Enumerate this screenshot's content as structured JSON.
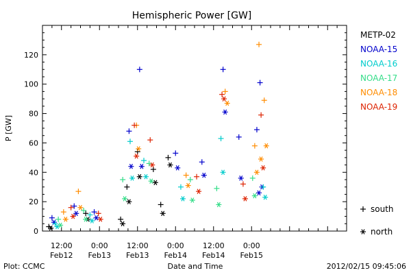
{
  "chart_data": {
    "type": "scatter",
    "title": "Hemispheric Power [GW]",
    "ylabel": "P [GW]",
    "xlabel": "Date and Time",
    "ylim": [
      0,
      140
    ],
    "yticks": [
      0,
      20,
      40,
      60,
      80,
      100,
      120
    ],
    "xlim": [
      "2012-02-12 06:00",
      "2012-02-16 06:00"
    ],
    "xticks": [
      {
        "time": "2012-02-12 12:00",
        "line1": "12:00",
        "line2": "Feb12"
      },
      {
        "time": "2012-02-13 00:00",
        "line1": "0:00",
        "line2": "Feb13"
      },
      {
        "time": "2012-02-13 12:00",
        "line1": "12:00",
        "line2": "Feb13"
      },
      {
        "time": "2012-02-14 00:00",
        "line1": "0:00",
        "line2": "Feb14"
      },
      {
        "time": "2012-02-14 12:00",
        "line1": "12:00",
        "line2": "Feb14"
      },
      {
        "time": "2012-02-15 00:00",
        "line1": "0:00",
        "line2": "Feb15"
      }
    ],
    "marker_legend": [
      {
        "symbol": "+",
        "label": "south"
      },
      {
        "symbol": "*",
        "label": "north"
      }
    ],
    "series": [
      {
        "name": "METP-02",
        "color": "#000000",
        "points": [
          {
            "x": "2012-02-12 08:00",
            "south": 3,
            "north": 2
          },
          {
            "x": "2012-02-12 19:40",
            "south": 12,
            "north": 8
          },
          {
            "x": "2012-02-13 06:40",
            "south": 8,
            "north": 5
          },
          {
            "x": "2012-02-13 08:40",
            "south": 30,
            "north": 20
          },
          {
            "x": "2012-02-13 12:00",
            "south": 54,
            "north": 37
          },
          {
            "x": "2012-02-13 17:00",
            "south": 42,
            "north": 33
          },
          {
            "x": "2012-02-13 19:20",
            "south": 18,
            "north": 12
          },
          {
            "x": "2012-02-13 21:40",
            "south": 50,
            "north": 45
          }
        ]
      },
      {
        "name": "NOAA-15",
        "color": "#0000cc",
        "points": [
          {
            "x": "2012-02-12 09:00",
            "south": 9,
            "north": 6
          },
          {
            "x": "2012-02-12 16:00",
            "south": 17,
            "north": 12
          },
          {
            "x": "2012-02-12 22:20",
            "south": 13,
            "north": 9
          },
          {
            "x": "2012-02-13 09:20",
            "south": 68,
            "north": 44
          },
          {
            "x": "2012-02-13 12:40",
            "south": 110,
            "north": 44
          },
          {
            "x": "2012-02-14 00:00",
            "south": 53,
            "north": 43
          },
          {
            "x": "2012-02-14 08:20",
            "south": 47,
            "north": 38
          },
          {
            "x": "2012-02-14 15:00",
            "south": 110,
            "north": 81
          },
          {
            "x": "2012-02-14 20:00",
            "south": 64,
            "north": 36
          },
          {
            "x": "2012-02-15 01:40",
            "south": 69,
            "north": 26
          },
          {
            "x": "2012-02-15 02:40",
            "south": 101,
            "north": 30
          }
        ]
      },
      {
        "name": "NOAA-16",
        "color": "#00cccc",
        "points": [
          {
            "x": "2012-02-12 10:00",
            "south": 5,
            "north": 3
          },
          {
            "x": "2012-02-12 21:00",
            "south": 11,
            "north": 7
          },
          {
            "x": "2012-02-13 09:40",
            "south": 61,
            "north": 36
          },
          {
            "x": "2012-02-13 14:00",
            "south": 48,
            "north": 37
          },
          {
            "x": "2012-02-14 01:40",
            "south": 30,
            "north": 22
          },
          {
            "x": "2012-02-14 14:20",
            "south": 63,
            "north": 40
          },
          {
            "x": "2012-02-15 03:40",
            "south": 30,
            "north": 23
          }
        ]
      },
      {
        "name": "NOAA-17",
        "color": "#33dd88",
        "points": [
          {
            "x": "2012-02-12 11:00",
            "south": 8,
            "north": 4
          },
          {
            "x": "2012-02-12 19:00",
            "south": 14,
            "north": 8
          },
          {
            "x": "2012-02-13 07:20",
            "south": 35,
            "north": 22
          },
          {
            "x": "2012-02-13 15:40",
            "south": 46,
            "north": 34
          },
          {
            "x": "2012-02-14 04:40",
            "south": 35,
            "north": 21
          },
          {
            "x": "2012-02-14 13:00",
            "south": 29,
            "north": 18
          },
          {
            "x": "2012-02-15 00:20",
            "south": 36,
            "north": 24
          }
        ]
      },
      {
        "name": "NOAA-18",
        "color": "#ff8c00",
        "points": [
          {
            "x": "2012-02-12 12:40",
            "south": 13,
            "north": 8
          },
          {
            "x": "2012-02-12 17:20",
            "south": 27,
            "north": 16
          },
          {
            "x": "2012-02-13 11:40",
            "south": 72,
            "north": 56
          },
          {
            "x": "2012-02-14 03:20",
            "south": 38,
            "north": 31
          },
          {
            "x": "2012-02-14 15:40",
            "south": 95,
            "north": 87
          },
          {
            "x": "2012-02-15 01:00",
            "south": 58,
            "north": 40
          },
          {
            "x": "2012-02-15 04:00",
            "south": 89,
            "north": 58
          },
          {
            "x": "2012-02-15 02:20",
            "south": 127,
            "north": 49
          }
        ]
      },
      {
        "name": "NOAA-19",
        "color": "#dd2200",
        "points": [
          {
            "x": "2012-02-12 15:00",
            "south": 16,
            "north": 10
          },
          {
            "x": "2012-02-12 23:40",
            "south": 12,
            "north": 8
          },
          {
            "x": "2012-02-13 11:00",
            "south": 72,
            "north": 51
          },
          {
            "x": "2012-02-13 16:00",
            "south": 62,
            "north": 45
          },
          {
            "x": "2012-02-14 06:40",
            "south": 37,
            "north": 27
          },
          {
            "x": "2012-02-14 14:40",
            "south": 93,
            "north": 90
          },
          {
            "x": "2012-02-15 03:00",
            "south": 79,
            "north": 43
          },
          {
            "x": "2012-02-14 21:20",
            "south": 32,
            "north": 22
          }
        ]
      }
    ]
  },
  "footer": {
    "left": "Plot: CCMC",
    "right": "2012/02/15 09:45:06"
  }
}
